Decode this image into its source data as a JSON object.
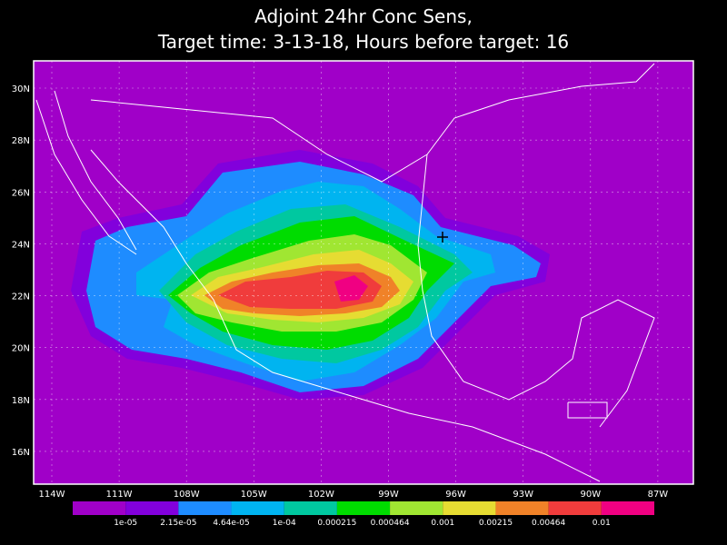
{
  "title": [
    "Adjoint 24hr Conc Sens,",
    "Target time: 3-13-18, Hours before target: 16"
  ],
  "lat_labels": [
    "30N",
    "28N",
    "26N",
    "24N",
    "22N",
    "20N",
    "18N",
    "16N"
  ],
  "lon_labels": [
    "114W",
    "111W",
    "108W",
    "105W",
    "102W",
    "99W",
    "96W",
    "93W",
    "90W",
    "87W"
  ],
  "colorbar": {
    "labels": [
      "1e-05",
      "2.15e-05",
      "4.64e-05",
      "1e-04",
      "0.000215",
      "0.000464",
      "0.001",
      "0.00215",
      "0.00464",
      "0.01"
    ],
    "colors": [
      "#a000c8",
      "#8200dc",
      "#1e8cff",
      "#00b4f0",
      "#00c8a0",
      "#00dc00",
      "#a0e632",
      "#e6dc32",
      "#f08228",
      "#f03c3c",
      "#f00082"
    ]
  }
}
